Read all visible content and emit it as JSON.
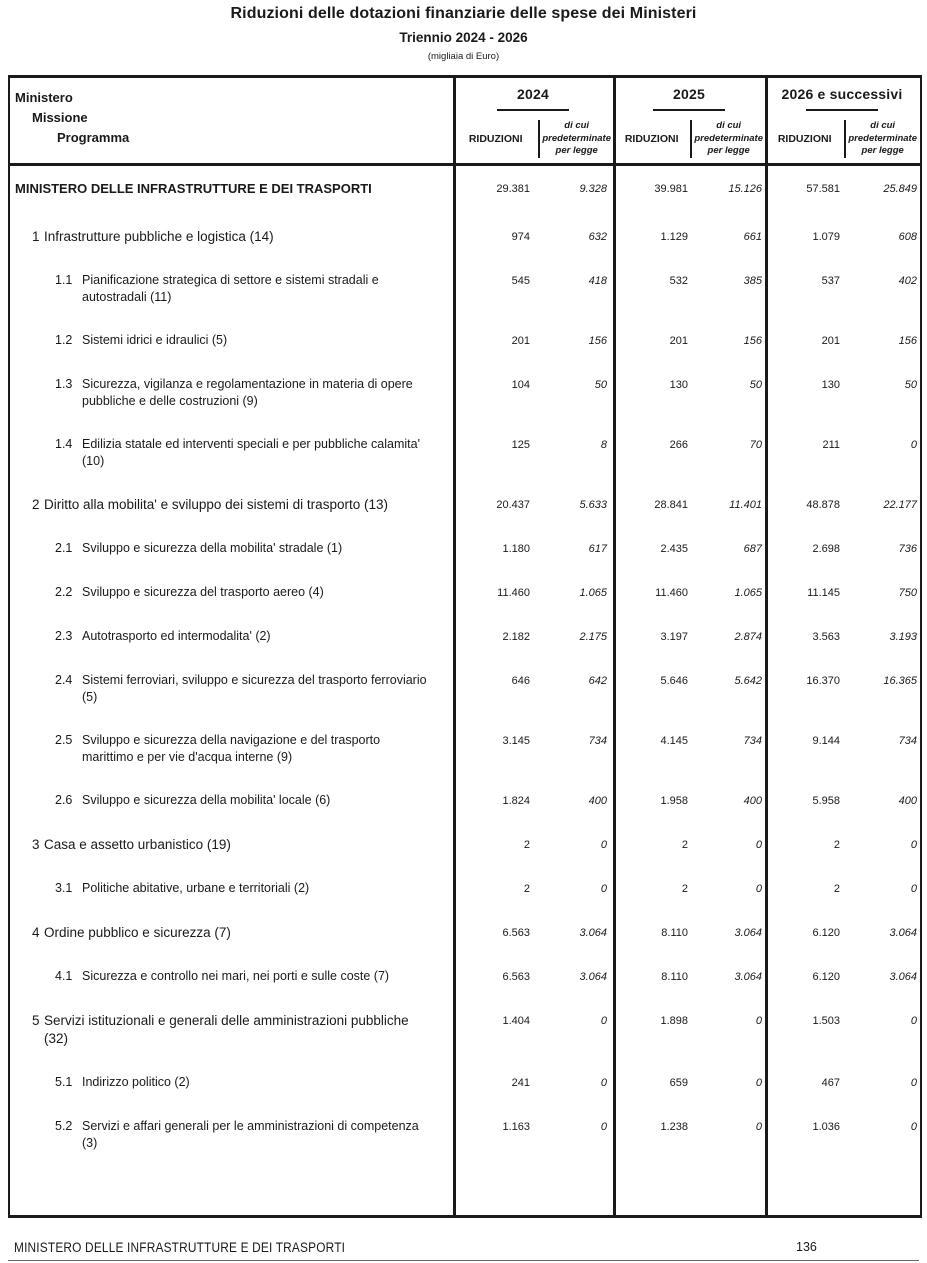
{
  "page": {
    "title": "Riduzioni delle dotazioni finanziarie delle spese dei Ministeri",
    "subtitle": "Triennio 2024 - 2026",
    "unit_note": "(migliaia di Euro)"
  },
  "colors": {
    "ink": "#1a1a1a",
    "background": "#ffffff"
  },
  "table": {
    "header": {
      "level_labels": [
        "Ministero",
        "Missione",
        "Programma"
      ],
      "groups": [
        {
          "year": "2024",
          "reductions_label": "RIDUZIONI",
          "predetermined_label": "di cui predeterminate per legge"
        },
        {
          "year": "2025",
          "reductions_label": "RIDUZIONI",
          "predetermined_label": "di cui predeterminate per legge"
        },
        {
          "year": "2026 e successivi",
          "reductions_label": "RIDUZIONI",
          "predetermined_label": "di cui predeterminate per legge"
        }
      ]
    },
    "rows": [
      {
        "level": "ministry",
        "num": "",
        "label": "MINISTERO DELLE INFRASTRUTTURE E DEI TRASPORTI",
        "values": [
          "29.381",
          "9.328",
          "39.981",
          "15.126",
          "57.581",
          "25.849"
        ]
      },
      {
        "level": "mission",
        "num": "1",
        "label": "Infrastrutture pubbliche e logistica (14)",
        "values": [
          "974",
          "632",
          "1.129",
          "661",
          "1.079",
          "608"
        ]
      },
      {
        "level": "program",
        "num": "1.1",
        "label": "Pianificazione strategica di settore e sistemi stradali e autostradali (11)",
        "values": [
          "545",
          "418",
          "532",
          "385",
          "537",
          "402"
        ]
      },
      {
        "level": "program",
        "num": "1.2",
        "label": "Sistemi idrici e idraulici (5)",
        "values": [
          "201",
          "156",
          "201",
          "156",
          "201",
          "156"
        ]
      },
      {
        "level": "program",
        "num": "1.3",
        "label": "Sicurezza, vigilanza e regolamentazione in materia di opere pubbliche e delle costruzioni (9)",
        "values": [
          "104",
          "50",
          "130",
          "50",
          "130",
          "50"
        ]
      },
      {
        "level": "program",
        "num": "1.4",
        "label": "Edilizia statale ed interventi speciali e per pubbliche calamita' (10)",
        "values": [
          "125",
          "8",
          "266",
          "70",
          "211",
          "0"
        ]
      },
      {
        "level": "mission",
        "num": "2",
        "label": "Diritto alla mobilita' e sviluppo dei sistemi di trasporto (13)",
        "values": [
          "20.437",
          "5.633",
          "28.841",
          "11.401",
          "48.878",
          "22.177"
        ]
      },
      {
        "level": "program",
        "num": "2.1",
        "label": "Sviluppo e sicurezza della mobilita' stradale (1)",
        "values": [
          "1.180",
          "617",
          "2.435",
          "687",
          "2.698",
          "736"
        ]
      },
      {
        "level": "program",
        "num": "2.2",
        "label": "Sviluppo e sicurezza del trasporto aereo (4)",
        "values": [
          "11.460",
          "1.065",
          "11.460",
          "1.065",
          "11.145",
          "750"
        ]
      },
      {
        "level": "program",
        "num": "2.3",
        "label": "Autotrasporto ed intermodalita' (2)",
        "values": [
          "2.182",
          "2.175",
          "3.197",
          "2.874",
          "3.563",
          "3.193"
        ]
      },
      {
        "level": "program",
        "num": "2.4",
        "label": "Sistemi ferroviari, sviluppo e sicurezza del trasporto ferroviario (5)",
        "values": [
          "646",
          "642",
          "5.646",
          "5.642",
          "16.370",
          "16.365"
        ]
      },
      {
        "level": "program",
        "num": "2.5",
        "label": "Sviluppo e sicurezza della navigazione e del trasporto marittimo e per vie d'acqua interne (9)",
        "values": [
          "3.145",
          "734",
          "4.145",
          "734",
          "9.144",
          "734"
        ]
      },
      {
        "level": "program",
        "num": "2.6",
        "label": "Sviluppo e sicurezza della mobilita' locale (6)",
        "values": [
          "1.824",
          "400",
          "1.958",
          "400",
          "5.958",
          "400"
        ]
      },
      {
        "level": "mission",
        "num": "3",
        "label": "Casa e assetto urbanistico (19)",
        "values": [
          "2",
          "0",
          "2",
          "0",
          "2",
          "0"
        ]
      },
      {
        "level": "program",
        "num": "3.1",
        "label": "Politiche abitative, urbane e territoriali (2)",
        "values": [
          "2",
          "0",
          "2",
          "0",
          "2",
          "0"
        ]
      },
      {
        "level": "mission",
        "num": "4",
        "label": "Ordine pubblico e sicurezza (7)",
        "values": [
          "6.563",
          "3.064",
          "8.110",
          "3.064",
          "6.120",
          "3.064"
        ]
      },
      {
        "level": "program",
        "num": "4.1",
        "label": "Sicurezza e controllo nei mari, nei porti e sulle coste (7)",
        "values": [
          "6.563",
          "3.064",
          "8.110",
          "3.064",
          "6.120",
          "3.064"
        ]
      },
      {
        "level": "mission",
        "num": "5",
        "label": "Servizi istituzionali e generali delle amministrazioni pubbliche (32)",
        "values": [
          "1.404",
          "0",
          "1.898",
          "0",
          "1.503",
          "0"
        ]
      },
      {
        "level": "program",
        "num": "5.1",
        "label": "Indirizzo politico (2)",
        "values": [
          "241",
          "0",
          "659",
          "0",
          "467",
          "0"
        ]
      },
      {
        "level": "program",
        "num": "5.2",
        "label": "Servizi e affari generali per le amministrazioni di competenza (3)",
        "values": [
          "1.163",
          "0",
          "1.238",
          "0",
          "1.036",
          "0"
        ]
      }
    ]
  },
  "footer": {
    "ministry": "MINISTERO DELLE INFRASTRUTTURE E DEI TRASPORTI",
    "page_number": "136"
  }
}
